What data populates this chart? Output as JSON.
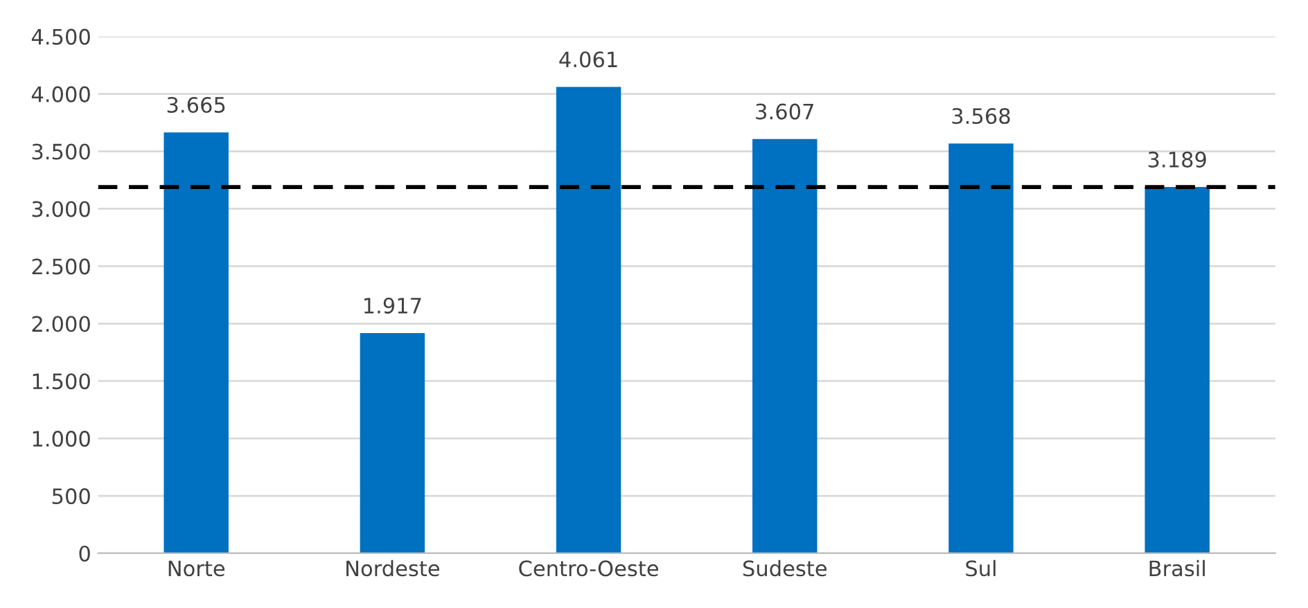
{
  "chart_data": {
    "type": "bar",
    "categories": [
      "Norte",
      "Nordeste",
      "Centro-Oeste",
      "Sudeste",
      "Sul",
      "Brasil"
    ],
    "values": [
      3665,
      1917,
      4061,
      3607,
      3568,
      3189
    ],
    "value_labels": [
      "3.665",
      "1.917",
      "4.061",
      "3.607",
      "3.568",
      "3.189"
    ],
    "color": "#0070c0",
    "ylim": [
      0,
      4500
    ],
    "yticks": [
      {
        "value": 0,
        "label": "0"
      },
      {
        "value": 500,
        "label": "500"
      },
      {
        "value": 1000,
        "label": "1.000"
      },
      {
        "value": 1500,
        "label": "1.500"
      },
      {
        "value": 2000,
        "label": "2.000"
      },
      {
        "value": 2500,
        "label": "2.500"
      },
      {
        "value": 3000,
        "label": "3.000"
      },
      {
        "value": 3500,
        "label": "3.500"
      },
      {
        "value": 4000,
        "label": "4.000"
      },
      {
        "value": 4500,
        "label": "4.500"
      }
    ],
    "ref_lines": [
      {
        "axis": "y",
        "value": 3189,
        "color": "#000000",
        "line_style": "dashed"
      }
    ],
    "grid": "y",
    "legend": false
  }
}
